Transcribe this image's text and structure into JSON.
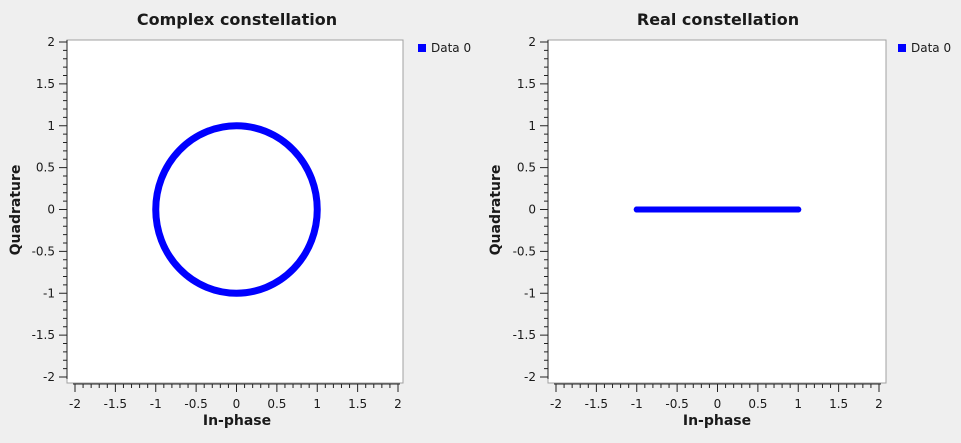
{
  "chart_data": [
    {
      "type": "scatter",
      "title": "Complex constellation",
      "xlabel": "In-phase",
      "ylabel": "Quadrature",
      "xlim": [
        -2,
        2
      ],
      "ylim": [
        -2,
        2
      ],
      "xticks": [
        "-2",
        "-1.5",
        "-1",
        "-0.5",
        "0",
        "0.5",
        "1",
        "1.5",
        "2"
      ],
      "yticks": [
        "2",
        "1.5",
        "1",
        "0.5",
        "0",
        "-0.5",
        "-1",
        "-1.5",
        "-2"
      ],
      "grid": false,
      "legend_position": "top-right outside",
      "series": [
        {
          "name": "Data 0",
          "color": "#0000ff",
          "shape": "unit-circle",
          "x": [
            1,
            0.924,
            0.707,
            0.383,
            0,
            -0.383,
            -0.707,
            -0.924,
            -1,
            -0.924,
            -0.707,
            -0.383,
            0,
            0.383,
            0.707,
            0.924
          ],
          "y": [
            0,
            0.383,
            0.707,
            0.924,
            1,
            0.924,
            0.707,
            0.383,
            0,
            -0.383,
            -0.707,
            -0.924,
            -1,
            -0.924,
            -0.707,
            -0.383
          ]
        }
      ]
    },
    {
      "type": "scatter",
      "title": "Real constellation",
      "xlabel": "In-phase",
      "ylabel": "Quadrature",
      "xlim": [
        -2,
        2
      ],
      "ylim": [
        -2,
        2
      ],
      "xticks": [
        "-2",
        "-1.5",
        "-1",
        "-0.5",
        "0",
        "0.5",
        "1",
        "1.5",
        "2"
      ],
      "yticks": [
        "2",
        "1.5",
        "1",
        "0.5",
        "0",
        "-0.5",
        "-1",
        "-1.5",
        "-2"
      ],
      "grid": false,
      "legend_position": "top-right outside",
      "series": [
        {
          "name": "Data 0",
          "color": "#0000ff",
          "shape": "line-segment",
          "x": [
            -1,
            -0.75,
            -0.5,
            -0.25,
            0,
            0.25,
            0.5,
            0.75,
            1
          ],
          "y": [
            0,
            0,
            0,
            0,
            0,
            0,
            0,
            0,
            0
          ]
        }
      ]
    }
  ]
}
